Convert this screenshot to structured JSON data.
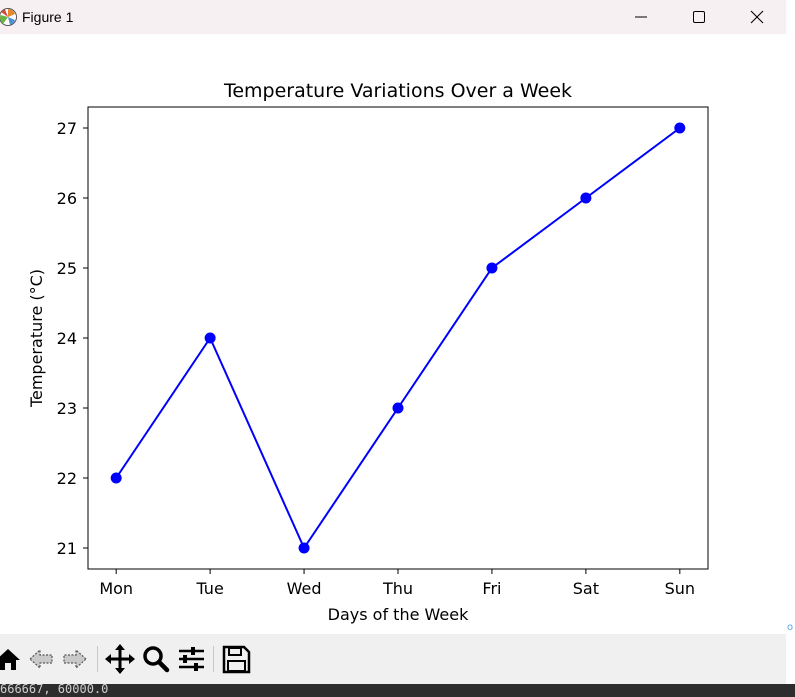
{
  "window": {
    "title": "Figure 1",
    "icon": "matplotlib-logo-icon",
    "controls": [
      "minimize-icon",
      "maximize-icon",
      "close-icon"
    ]
  },
  "chart_data": {
    "type": "line",
    "title": "Temperature Variations Over a Week",
    "xlabel": "Days of the Week",
    "ylabel": "Temperature (°C)",
    "categories": [
      "Mon",
      "Tue",
      "Wed",
      "Thu",
      "Fri",
      "Sat",
      "Sun"
    ],
    "series": [
      {
        "values": [
          22,
          24,
          21,
          23,
          25,
          26,
          27
        ],
        "color": "#0000ff",
        "marker": "circle"
      }
    ],
    "ylim": [
      20.7,
      27.3
    ],
    "yticks": [
      21,
      22,
      23,
      24,
      25,
      26,
      27
    ],
    "grid": false
  },
  "toolbar": {
    "tools": [
      {
        "name": "home-button",
        "icon": "home-icon"
      },
      {
        "name": "back-button",
        "icon": "back-arrow-icon"
      },
      {
        "name": "forward-button",
        "icon": "forward-arrow-icon"
      },
      {
        "name": "pan-button",
        "icon": "move-icon"
      },
      {
        "name": "zoom-button",
        "icon": "magnifier-icon"
      },
      {
        "name": "configure-subplots-button",
        "icon": "sliders-icon"
      },
      {
        "name": "save-button",
        "icon": "floppy-disk-icon"
      }
    ]
  },
  "status": {
    "coords": "666667, 60000.0"
  }
}
